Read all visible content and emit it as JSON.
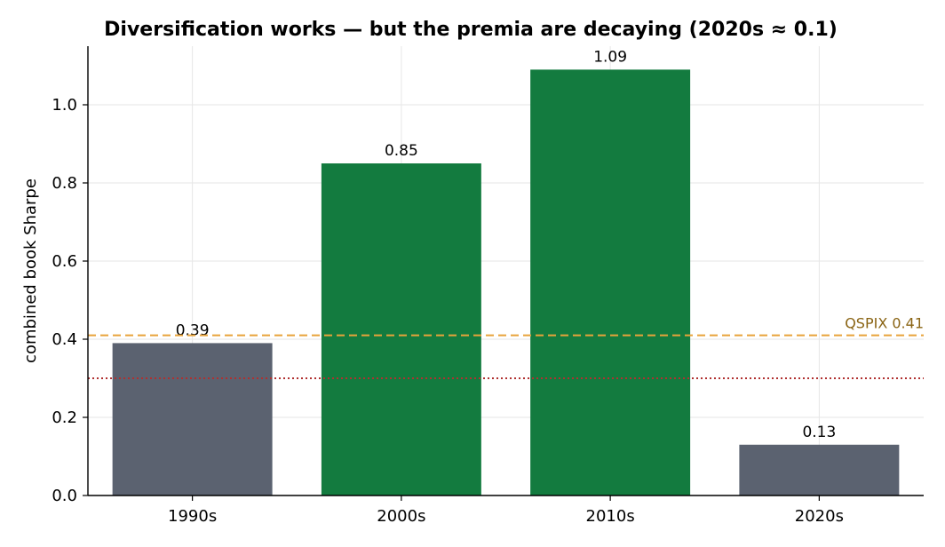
{
  "chart_data": {
    "type": "bar",
    "title": "Diversification works — but the premia are decaying (2020s ≈ 0.1)",
    "xlabel": "",
    "ylabel": "combined book Sharpe",
    "categories": [
      "1990s",
      "2000s",
      "2010s",
      "2020s"
    ],
    "values": [
      0.39,
      0.85,
      1.09,
      0.13
    ],
    "value_labels": [
      "0.39",
      "0.85",
      "1.09",
      "0.13"
    ],
    "bar_colors": [
      "#5b6270",
      "#137b3f",
      "#137b3f",
      "#5b6270"
    ],
    "ylim": [
      0,
      1.15
    ],
    "yticks": [
      0.0,
      0.2,
      0.4,
      0.6,
      0.8,
      1.0
    ],
    "ytick_labels": [
      "0.0",
      "0.2",
      "0.4",
      "0.6",
      "0.8",
      "1.0"
    ],
    "grid": true,
    "reference_lines": [
      {
        "value": 0.41,
        "label": "QSPIX 0.41",
        "color": "#e8a33a",
        "label_color": "#8a6414",
        "style": "dashed"
      },
      {
        "value": 0.3,
        "label": "",
        "color": "#b03030",
        "style": "dotted"
      }
    ]
  }
}
